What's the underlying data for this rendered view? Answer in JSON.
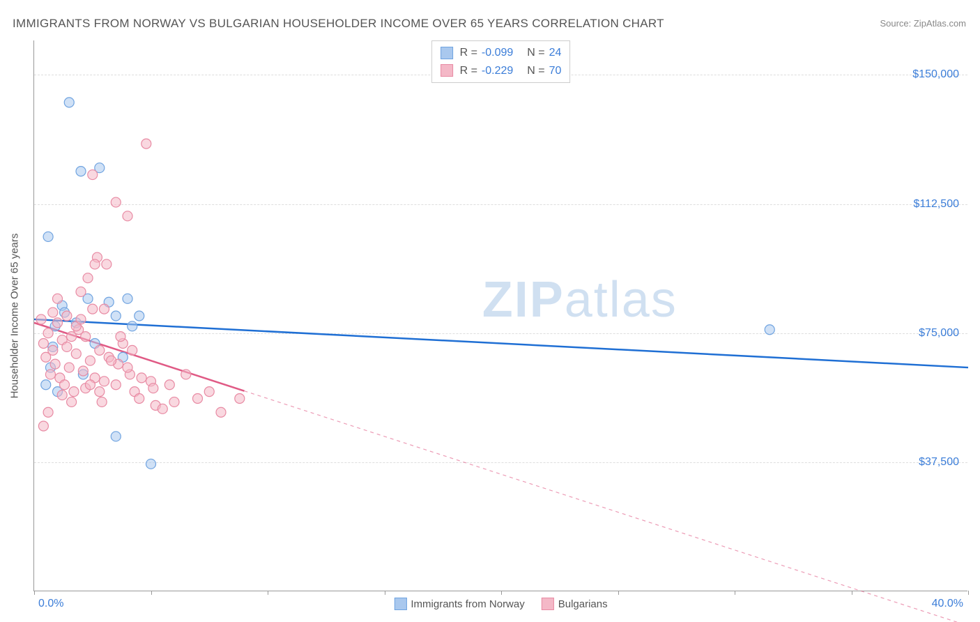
{
  "title": "IMMIGRANTS FROM NORWAY VS BULGARIAN HOUSEHOLDER INCOME OVER 65 YEARS CORRELATION CHART",
  "source": "Source: ZipAtlas.com",
  "watermark_a": "ZIP",
  "watermark_b": "atlas",
  "yaxis_title": "Householder Income Over 65 years",
  "chart": {
    "type": "scatter-with-regression",
    "xlim": [
      0,
      40
    ],
    "ylim": [
      0,
      160000
    ],
    "x_tick_positions": [
      0,
      5,
      10,
      15,
      20,
      25,
      30,
      35,
      40
    ],
    "x_tick_label_min": "0.0%",
    "x_tick_label_max": "40.0%",
    "y_ticks": [
      37500,
      75000,
      112500,
      150000
    ],
    "y_tick_labels": [
      "$37,500",
      "$75,000",
      "$112,500",
      "$150,000"
    ],
    "background_color": "#ffffff",
    "grid_color": "#dddddd",
    "axis_color": "#999999",
    "marker_radius": 7,
    "marker_stroke_width": 1.2,
    "line_width": 2.5,
    "dash_pattern": "5,5",
    "series": [
      {
        "id": "norway",
        "label": "Immigrants from Norway",
        "color_fill": "#a9c8ee",
        "color_stroke": "#6fa3e0",
        "line_color": "#1f6fd4",
        "R": "-0.099",
        "N": "24",
        "regression": {
          "x1": 0,
          "y1": 79000,
          "x2": 40,
          "y2": 65000,
          "solid_until_x": 40
        },
        "points": [
          [
            0.6,
            103000
          ],
          [
            1.5,
            142000
          ],
          [
            2.0,
            122000
          ],
          [
            2.8,
            123000
          ],
          [
            1.2,
            83000
          ],
          [
            0.7,
            65000
          ],
          [
            0.8,
            71000
          ],
          [
            1.0,
            58000
          ],
          [
            1.3,
            81000
          ],
          [
            1.8,
            78000
          ],
          [
            2.1,
            63000
          ],
          [
            2.3,
            85000
          ],
          [
            2.6,
            72000
          ],
          [
            3.2,
            84000
          ],
          [
            3.5,
            80000
          ],
          [
            3.8,
            68000
          ],
          [
            4.0,
            85000
          ],
          [
            4.2,
            77000
          ],
          [
            4.5,
            80000
          ],
          [
            3.5,
            45000
          ],
          [
            5.0,
            37000
          ],
          [
            0.5,
            60000
          ],
          [
            0.9,
            77000
          ],
          [
            31.5,
            76000
          ]
        ]
      },
      {
        "id": "bulgarians",
        "label": "Bulgarians",
        "color_fill": "#f4b8c7",
        "color_stroke": "#e88aa3",
        "line_color": "#e05a85",
        "R": "-0.229",
        "N": "70",
        "regression": {
          "x1": 0,
          "y1": 78000,
          "x2": 40,
          "y2": -10000,
          "solid_until_x": 9
        },
        "points": [
          [
            0.3,
            79000
          ],
          [
            0.4,
            72000
          ],
          [
            0.5,
            68000
          ],
          [
            0.6,
            75000
          ],
          [
            0.7,
            63000
          ],
          [
            0.8,
            70000
          ],
          [
            0.9,
            66000
          ],
          [
            1.0,
            78000
          ],
          [
            1.1,
            62000
          ],
          [
            1.2,
            73000
          ],
          [
            1.3,
            60000
          ],
          [
            1.4,
            71000
          ],
          [
            1.5,
            65000
          ],
          [
            1.6,
            74000
          ],
          [
            1.7,
            58000
          ],
          [
            1.8,
            69000
          ],
          [
            1.9,
            76000
          ],
          [
            2.0,
            87000
          ],
          [
            2.1,
            64000
          ],
          [
            2.2,
            59000
          ],
          [
            2.3,
            91000
          ],
          [
            2.4,
            67000
          ],
          [
            2.5,
            82000
          ],
          [
            2.5,
            121000
          ],
          [
            2.6,
            62000
          ],
          [
            2.7,
            97000
          ],
          [
            2.8,
            70000
          ],
          [
            2.9,
            55000
          ],
          [
            3.0,
            61000
          ],
          [
            3.1,
            95000
          ],
          [
            3.2,
            68000
          ],
          [
            3.5,
            113000
          ],
          [
            3.6,
            66000
          ],
          [
            3.8,
            72000
          ],
          [
            4.0,
            109000
          ],
          [
            4.1,
            63000
          ],
          [
            4.3,
            58000
          ],
          [
            4.5,
            56000
          ],
          [
            4.8,
            130000
          ],
          [
            5.0,
            61000
          ],
          [
            5.2,
            54000
          ],
          [
            5.5,
            53000
          ],
          [
            6.0,
            55000
          ],
          [
            6.5,
            63000
          ],
          [
            7.0,
            56000
          ],
          [
            7.5,
            58000
          ],
          [
            8.0,
            52000
          ],
          [
            8.8,
            56000
          ],
          [
            0.4,
            48000
          ],
          [
            0.6,
            52000
          ],
          [
            0.8,
            81000
          ],
          [
            1.0,
            85000
          ],
          [
            1.2,
            57000
          ],
          [
            1.4,
            80000
          ],
          [
            1.6,
            55000
          ],
          [
            1.8,
            77000
          ],
          [
            2.0,
            79000
          ],
          [
            2.2,
            74000
          ],
          [
            2.4,
            60000
          ],
          [
            2.6,
            95000
          ],
          [
            2.8,
            58000
          ],
          [
            3.0,
            82000
          ],
          [
            3.3,
            67000
          ],
          [
            3.5,
            60000
          ],
          [
            3.7,
            74000
          ],
          [
            4.0,
            65000
          ],
          [
            4.2,
            70000
          ],
          [
            4.6,
            62000
          ],
          [
            5.1,
            59000
          ],
          [
            5.8,
            60000
          ]
        ]
      }
    ]
  },
  "legend_top_labels": {
    "R": "R =",
    "N": "N ="
  }
}
